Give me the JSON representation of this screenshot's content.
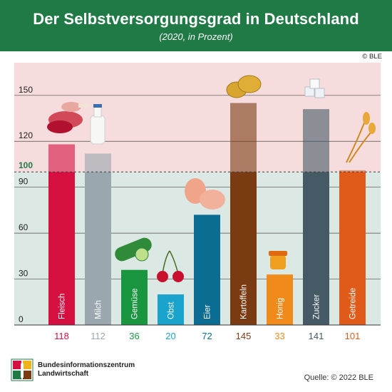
{
  "header": {
    "title": "Der Selbstversorgungsgrad in Deutschland",
    "subtitle": "(2020, in Prozent)"
  },
  "copyright": "© BLE",
  "source": "Quelle: © 2022 BLE",
  "logo": {
    "line1": "Bundesinformationszentrum",
    "line2": "Landwirtschaft"
  },
  "colors": {
    "above_bg": "#f6dcdc",
    "below_bg": "#dbe8e3",
    "header": "#1f7a45"
  },
  "chart_data": {
    "type": "bar",
    "title": "Der Selbstversorgungsgrad in Deutschland",
    "subtitle": "(2020, in Prozent)",
    "categories": [
      "Fleisch",
      "Milch",
      "Gemüse",
      "Obst",
      "Eier",
      "Kartoffeln",
      "Honig",
      "Zucker",
      "Getreide"
    ],
    "values": [
      118,
      112,
      36,
      20,
      72,
      145,
      33,
      141,
      101
    ],
    "colors": [
      "#d50f3f",
      "#9aa7ae",
      "#1a9641",
      "#1aa3cc",
      "#0a6d91",
      "#7a3b12",
      "#f08a1a",
      "#455a64",
      "#e05a1a"
    ],
    "yticks": [
      0,
      30,
      60,
      90,
      120,
      150
    ],
    "reference_line": 100,
    "reference_label": "100",
    "ylim": [
      0,
      165
    ],
    "xlabel": "",
    "ylabel": "",
    "grid": true,
    "legend": "none"
  }
}
